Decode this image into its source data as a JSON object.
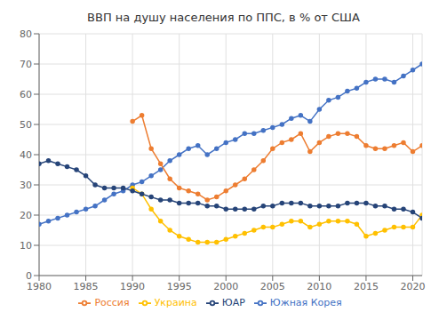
{
  "chart_data": {
    "type": "line",
    "title": "ВВП на душу населения по ППС, в % от США",
    "x": [
      1980,
      1981,
      1982,
      1983,
      1984,
      1985,
      1986,
      1987,
      1988,
      1989,
      1990,
      1991,
      1992,
      1993,
      1994,
      1995,
      1996,
      1997,
      1998,
      1999,
      2000,
      2001,
      2002,
      2003,
      2004,
      2005,
      2006,
      2007,
      2008,
      2009,
      2010,
      2011,
      2012,
      2013,
      2014,
      2015,
      2016,
      2017,
      2018,
      2019,
      2020,
      2021
    ],
    "series": [
      {
        "name": "Южная Корея",
        "color": "#4472C4",
        "marker": "circle",
        "values": [
          17,
          18,
          19,
          20,
          21,
          22,
          23,
          25,
          27,
          28,
          30,
          31,
          33,
          35,
          38,
          40,
          42,
          43,
          40,
          42,
          44,
          45,
          47,
          47,
          48,
          49,
          50,
          52,
          53,
          51,
          55,
          58,
          59,
          61,
          62,
          64,
          65,
          65,
          64,
          66,
          68,
          70
        ]
      },
      {
        "name": "Россия",
        "color": "#ED7D31",
        "marker": "circle",
        "values": [
          null,
          null,
          null,
          null,
          null,
          null,
          null,
          null,
          null,
          null,
          51,
          53,
          42,
          37,
          32,
          29,
          28,
          27,
          25,
          26,
          28,
          30,
          32,
          35,
          38,
          42,
          44,
          45,
          47,
          41,
          44,
          46,
          47,
          47,
          46,
          43,
          42,
          42,
          43,
          44,
          41,
          43
        ]
      },
      {
        "name": "Украина",
        "color": "#FFC000",
        "marker": "circle",
        "values": [
          null,
          null,
          null,
          null,
          null,
          null,
          null,
          null,
          null,
          null,
          29,
          27,
          22,
          18,
          15,
          13,
          12,
          11,
          11,
          11,
          12,
          13,
          14,
          15,
          16,
          16,
          17,
          18,
          18,
          16,
          17,
          18,
          18,
          18,
          17,
          13,
          14,
          15,
          16,
          16,
          16,
          20
        ]
      },
      {
        "name": "ЮАР",
        "color": "#264478",
        "marker": "circle",
        "values": [
          37,
          38,
          37,
          36,
          35,
          33,
          30,
          29,
          29,
          29,
          28,
          27,
          26,
          25,
          25,
          24,
          24,
          24,
          23,
          23,
          22,
          22,
          22,
          22,
          23,
          23,
          24,
          24,
          24,
          23,
          23,
          23,
          23,
          24,
          24,
          24,
          23,
          23,
          22,
          22,
          21,
          19
        ]
      }
    ],
    "xlim": [
      1980,
      2021
    ],
    "ylim": [
      0,
      80
    ],
    "xticks": [
      1980,
      1985,
      1990,
      1995,
      2000,
      2005,
      2010,
      2015,
      2020
    ],
    "yticks": [
      0,
      10,
      20,
      30,
      40,
      50,
      60,
      70,
      80
    ],
    "grid": true,
    "legend": "bottom"
  }
}
